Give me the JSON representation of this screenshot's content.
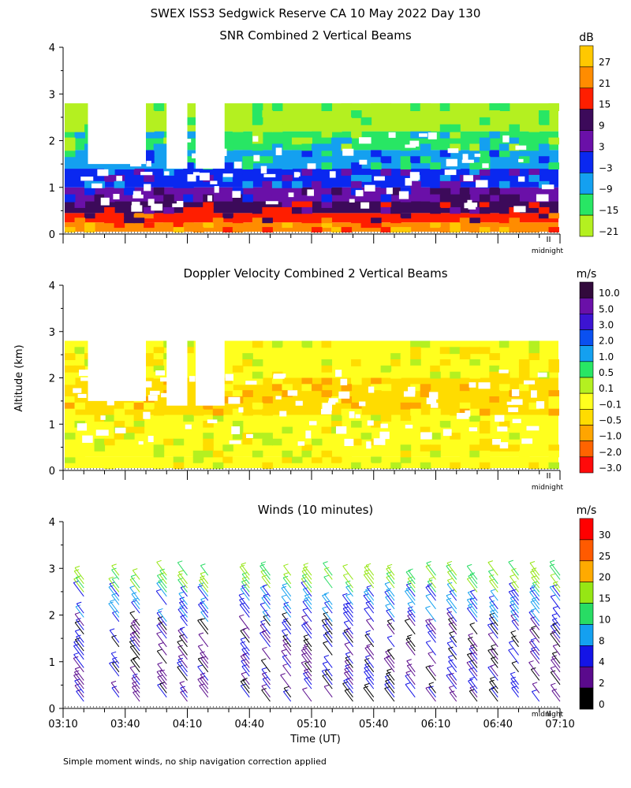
{
  "figure": {
    "title": "SWEX ISS3 Sedgwick Reserve CA  10 May 2022 Day 130",
    "shared_ylabel": "Altitude (km)",
    "xlabel": "Time (UT)",
    "footnote": "Simple moment winds, no ship navigation correction applied",
    "midnight_label": "midnight"
  },
  "chart_data": [
    {
      "type": "heatmap",
      "title": "SNR Combined 2 Vertical Beams",
      "unit": "dB",
      "ylim": [
        0,
        4
      ],
      "yticks": [
        "0",
        "1",
        "2",
        "3",
        "4"
      ],
      "x_range_minutes": [
        0,
        240
      ],
      "colorbar_labels": [
        "27",
        "21",
        "15",
        "9",
        "3",
        "−3",
        "−9",
        "−15",
        "−21"
      ],
      "colorbar_colors": [
        "#ffc800",
        "#ff8c00",
        "#ff1e00",
        "#3c0a5a",
        "#6a10a8",
        "#0a28f0",
        "#14a0f0",
        "#28e664",
        "#b4f020"
      ],
      "layers": [
        {
          "alt": [
            0.05,
            0.25
          ],
          "value": 21
        },
        {
          "alt": [
            0.25,
            0.45
          ],
          "value": 15
        },
        {
          "alt": [
            0.45,
            0.7
          ],
          "value": 9
        },
        {
          "alt": [
            0.7,
            1.0
          ],
          "value": 3
        },
        {
          "alt": [
            1.0,
            1.4
          ],
          "value": -3
        },
        {
          "alt": [
            1.4,
            1.8
          ],
          "value": -9
        },
        {
          "alt": [
            1.8,
            2.2
          ],
          "value": -15
        },
        {
          "alt": [
            2.2,
            2.8
          ],
          "value": -21
        }
      ]
    },
    {
      "type": "heatmap",
      "title": "Doppler Velocity Combined 2 Vertical Beams",
      "unit": "m/s",
      "ylim": [
        0,
        4
      ],
      "yticks": [
        "0",
        "1",
        "2",
        "3",
        "4"
      ],
      "x_range_minutes": [
        0,
        240
      ],
      "colorbar_labels": [
        "10.0",
        "5.0",
        "3.0",
        "2.0",
        "1.0",
        "0.5",
        "0.1",
        "−0.1",
        "−0.5",
        "−1.0",
        "−2.0",
        "−3.0"
      ],
      "colorbar_colors": [
        "#320a3c",
        "#6a10a8",
        "#3c14d2",
        "#0a50f0",
        "#14a0f0",
        "#28e664",
        "#b4f020",
        "#ffff1e",
        "#ffdc00",
        "#ffa500",
        "#ff6400",
        "#ff0a0a"
      ],
      "layers": [
        {
          "alt": [
            0.05,
            0.3
          ],
          "value": -0.1
        },
        {
          "alt": [
            0.3,
            1.2
          ],
          "value": -0.1
        },
        {
          "alt": [
            1.2,
            2.0
          ],
          "value": -0.5
        },
        {
          "alt": [
            2.0,
            2.8
          ],
          "value": -0.1
        }
      ]
    },
    {
      "type": "scatter",
      "title": "Winds (10 minutes)",
      "unit": "m/s",
      "ylim": [
        0,
        4
      ],
      "yticks": [
        "0",
        "1",
        "2",
        "3",
        "4"
      ],
      "x_range_minutes": [
        0,
        240
      ],
      "xticks": [
        "03:10",
        "03:40",
        "04:10",
        "04:40",
        "05:10",
        "05:40",
        "06:10",
        "06:40",
        "07:10"
      ],
      "colorbar_labels": [
        "30",
        "25",
        "20",
        "15",
        "10",
        "8",
        "4",
        "2",
        "0"
      ],
      "colorbar_colors": [
        "#ff0000",
        "#ff5a00",
        "#ffaa00",
        "#96e614",
        "#28dc64",
        "#14a0f0",
        "#1414e6",
        "#5a0a8c",
        "#000000"
      ],
      "profile_times_minutes": [
        10,
        27,
        37,
        50,
        60,
        70,
        90,
        100,
        110,
        120,
        130,
        140,
        150,
        160,
        170,
        180,
        190,
        200,
        210,
        220,
        230,
        240
      ]
    }
  ]
}
